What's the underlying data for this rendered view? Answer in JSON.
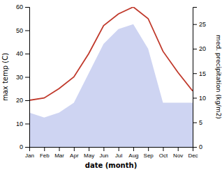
{
  "chart_data": {
    "type": "line",
    "categories": [
      "Jan",
      "Feb",
      "Mar",
      "Apr",
      "May",
      "Jun",
      "Jul",
      "Aug",
      "Sep",
      "Oct",
      "Nov",
      "Dec"
    ],
    "series": [
      {
        "type": "area",
        "axis": "y2",
        "color": "#c5cdf0",
        "values": [
          7,
          6,
          7,
          9,
          15,
          21,
          24,
          25,
          20,
          9,
          9,
          9
        ]
      },
      {
        "type": "line",
        "color": "#c0392b",
        "values": [
          20,
          21,
          25,
          30,
          40,
          52,
          57,
          60,
          55,
          41,
          32,
          24
        ]
      }
    ],
    "xlabel": "date (month)",
    "ylabel": "max temp (C)",
    "y2label": "med. precipitation (kg/m2)",
    "ylim": [
      0,
      60
    ],
    "yticks": [
      0,
      10,
      20,
      30,
      40,
      50,
      60
    ],
    "y2lim": [
      0,
      28.5
    ],
    "y2ticks": [
      0,
      5,
      10,
      15,
      20,
      25
    ],
    "grid": false
  }
}
